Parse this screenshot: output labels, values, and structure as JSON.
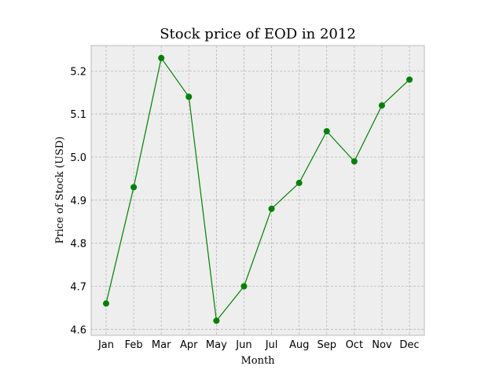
{
  "chart_data": {
    "type": "line",
    "title": "Stock price of EOD in 2012",
    "xlabel": "Month",
    "ylabel": "Price of Stock (USD)",
    "categories": [
      "Jan",
      "Feb",
      "Mar",
      "Apr",
      "May",
      "Jun",
      "Jul",
      "Aug",
      "Sep",
      "Oct",
      "Nov",
      "Dec"
    ],
    "series": [
      {
        "values": [
          4.66,
          4.93,
          5.23,
          5.14,
          4.62,
          4.7,
          4.88,
          4.94,
          5.06,
          4.99,
          5.12,
          5.18
        ]
      }
    ],
    "yticks": [
      "4.6",
      "4.7",
      "4.8",
      "4.9",
      "5.0",
      "5.1",
      "5.2"
    ],
    "ylim": [
      4.586,
      5.259
    ],
    "grid": true,
    "legend": "none",
    "colors": {
      "line": "#008000",
      "marker": "#008000",
      "plot_background": "#eeeeee",
      "frame": "#bcbcbc",
      "grid": "#b8b8b8"
    }
  }
}
